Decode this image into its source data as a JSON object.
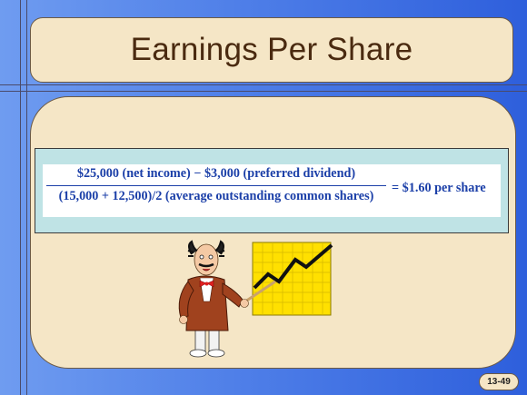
{
  "slide": {
    "title": "Earnings Per Share",
    "slide_number": "13-49"
  },
  "formula": {
    "numerator": "$25,000 (net income) − $3,000 (preferred dividend)",
    "denominator": "(15,000 + 12,500)/2 (average outstanding common shares)",
    "result": "= $1.60 per share"
  },
  "illustration": {
    "name": "presenter-with-rising-chart",
    "colors": {
      "chart_background": "#ffe000",
      "suit": "#a0421e",
      "tie": "#e02020",
      "trend_line": "#111111"
    }
  },
  "theme": {
    "background_left": "#6f9cf0",
    "background_right": "#2e5fdc",
    "panel": "#f5e6c6",
    "formula_band": "#bfe3e5",
    "formula_text": "#1b3fa8"
  }
}
